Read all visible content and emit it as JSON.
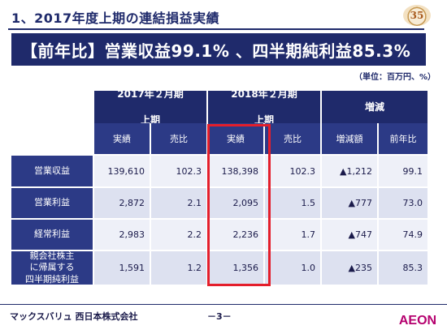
{
  "header": {
    "title": "1、2017年度上期の連結損益実績",
    "badge": "35"
  },
  "banner": "【前年比】営業収益99.1% 、四半期純利益85.3%",
  "unit_note": "（単位：百万円、%）",
  "table": {
    "groups": [
      {
        "label_line1": "2017年２月期",
        "label_line2": "上期"
      },
      {
        "label_line1": "2018年２月期",
        "label_line2": "上期"
      },
      {
        "label_line1": "増減",
        "label_line2": ""
      }
    ],
    "subheaders": [
      "実績",
      "売比",
      "実績",
      "売比",
      "増減額",
      "前年比"
    ],
    "rows": [
      {
        "label": "営業収益",
        "values": [
          "139,610",
          "102.3",
          "138,398",
          "102.3",
          "▲1,212",
          "99.1"
        ]
      },
      {
        "label": "営業利益",
        "values": [
          "2,872",
          "2.1",
          "2,095",
          "1.5",
          "▲777",
          "73.0"
        ]
      },
      {
        "label": "経常利益",
        "values": [
          "2,983",
          "2.2",
          "2,236",
          "1.7",
          "▲747",
          "74.9"
        ]
      },
      {
        "label": "親会社株主\nに帰属する\n四半期純利益",
        "values": [
          "1,591",
          "1.2",
          "1,356",
          "1.0",
          "▲235",
          "85.3"
        ]
      }
    ]
  },
  "footer": {
    "company": "マックスバリュ 西日本株式会社",
    "page": "－3－",
    "logo_text": "AEON"
  },
  "colors": {
    "navy": "#1f2a6b",
    "highlight": "#e41e2b",
    "logo_magenta": "#b5006e"
  }
}
